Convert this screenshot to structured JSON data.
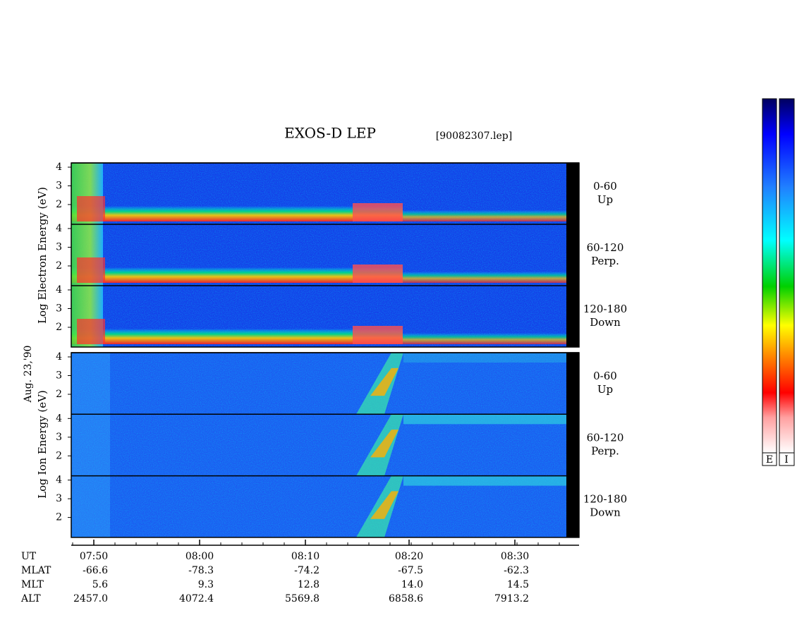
{
  "header": {
    "title": "EXOS-D LEP",
    "file": "[90082307.lep]"
  },
  "date": "Aug. 23,'90",
  "electron": {
    "axis_label": "Log Electron Energy (eV)",
    "panels": [
      {
        "range": "0-60",
        "direction": "Up",
        "ticks": [
          "4",
          "3",
          "2"
        ]
      },
      {
        "range": "60-120",
        "direction": "Perp.",
        "ticks": [
          "4",
          "3",
          "2"
        ]
      },
      {
        "range": "120-180",
        "direction": "Down",
        "ticks": [
          "4",
          "3",
          "2"
        ]
      }
    ]
  },
  "ion": {
    "axis_label": "Log Ion Energy (eV)",
    "panels": [
      {
        "range": "0-60",
        "direction": "Up",
        "ticks": [
          "4",
          "3",
          "2"
        ]
      },
      {
        "range": "60-120",
        "direction": "Perp.",
        "ticks": [
          "4",
          "3",
          "2"
        ]
      },
      {
        "range": "120-180",
        "direction": "Down",
        "ticks": [
          "4",
          "3",
          "2"
        ]
      }
    ]
  },
  "time_axis": {
    "name": "UT",
    "labels": [
      "07:50",
      "08:00",
      "08:10",
      "08:20",
      "08:30"
    ]
  },
  "ephemeris": {
    "rows": [
      {
        "name": "MLAT",
        "values": [
          "-66.6",
          "-78.3",
          "-74.2",
          "-67.5",
          "-62.3"
        ]
      },
      {
        "name": "MLT",
        "values": [
          "5.6",
          "9.3",
          "12.8",
          "14.0",
          "14.5"
        ]
      },
      {
        "name": "ALT",
        "values": [
          "2457.0",
          "4072.4",
          "5569.8",
          "6858.6",
          "7913.2"
        ]
      }
    ]
  },
  "colorbar": {
    "labels": [
      "E",
      "I"
    ]
  }
}
